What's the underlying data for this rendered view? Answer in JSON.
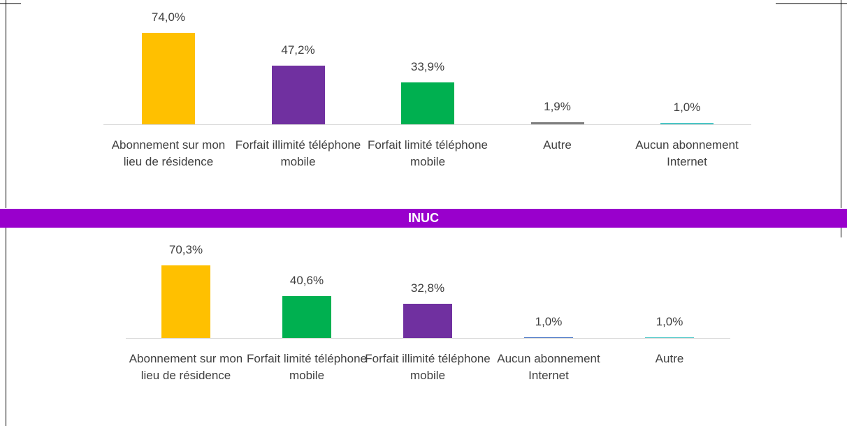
{
  "chart_data": [
    {
      "type": "bar",
      "categories": [
        "Abonnement sur mon lieu de résidence",
        "Forfait illimité téléphone mobile",
        "Forfait limité téléphone mobile",
        "Autre",
        "Aucun abonnement Internet"
      ],
      "values": [
        74.0,
        47.2,
        33.9,
        1.9,
        1.0
      ],
      "value_labels": [
        "74,0%",
        "47,2%",
        "33,9%",
        "1,9%",
        "1,0%"
      ],
      "colors": [
        "#ffc000",
        "#7030a0",
        "#00b050",
        "#7f7f7f",
        "#4bc6c6"
      ]
    },
    {
      "type": "bar",
      "title": "INUC",
      "categories": [
        "Abonnement sur mon lieu de résidence",
        "Forfait limité téléphone mobile",
        "Forfait illimité téléphone mobile",
        "Aucun abonnement Internet",
        "Autre"
      ],
      "values": [
        70.3,
        40.6,
        32.8,
        1.0,
        1.0
      ],
      "value_labels": [
        "70,3%",
        "40,6%",
        "32,8%",
        "1,0%",
        "1,0%"
      ],
      "colors": [
        "#ffc000",
        "#00b050",
        "#7030a0",
        "#4472c4",
        "#4bc6c6"
      ]
    }
  ]
}
